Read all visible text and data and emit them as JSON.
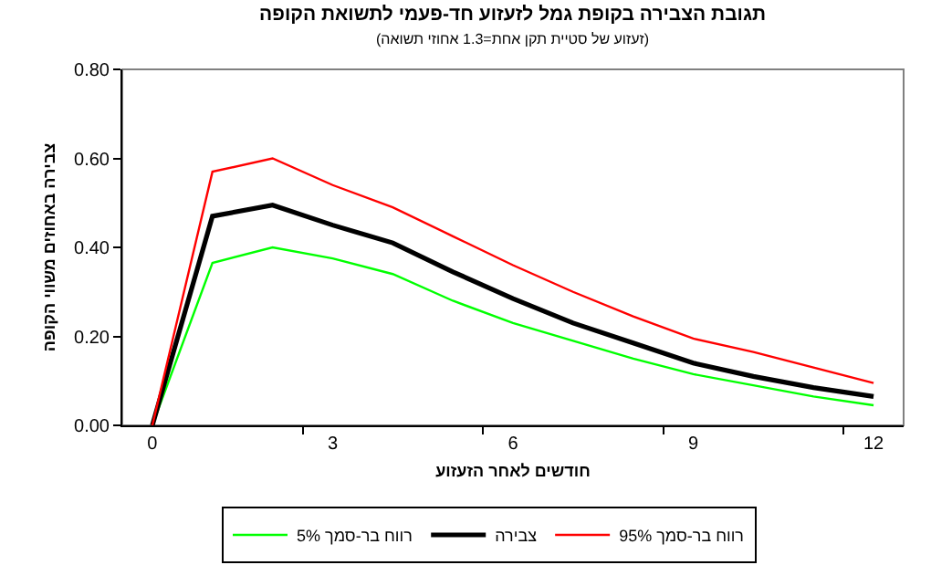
{
  "chart_data": {
    "type": "line",
    "title": "תגובת הצבירה בקופת גמל לזעזוע חד-פעמי לתשואת הקופה",
    "subtitle": "(זעזוע של סטיית תקן אחת=1.3 אחוזי תשואה)",
    "xlabel": "חודשים לאחר הזעזוע",
    "ylabel": "צבירה באחוזים משווי הקופה",
    "x": [
      0,
      1,
      2,
      3,
      4,
      5,
      6,
      7,
      8,
      9,
      10,
      11,
      12
    ],
    "xlim": [
      -0.5,
      12.5
    ],
    "xticks": [
      0,
      {
        "value": 2.5,
        "label": null
      },
      3,
      {
        "value": 5.5,
        "label": null
      },
      6,
      {
        "value": 8.5,
        "label": null
      },
      9,
      {
        "value": 11.5,
        "label": null
      },
      12
    ],
    "ylim": [
      0,
      0.8
    ],
    "yticks": [
      {
        "value": 0,
        "label": "0.00"
      },
      {
        "value": 0.2,
        "label": "0.20"
      },
      {
        "value": 0.4,
        "label": "0.40"
      },
      {
        "value": 0.6,
        "label": "0.60"
      },
      {
        "value": 0.8,
        "label": "0.80"
      }
    ],
    "series": [
      {
        "name": "רווח בר-סמך 5%",
        "color": "#00ff00",
        "values": [
          0,
          0.365,
          0.4,
          0.375,
          0.34,
          0.28,
          0.23,
          0.19,
          0.15,
          0.115,
          0.09,
          0.065,
          0.045
        ]
      },
      {
        "name": "צבירה",
        "color": "#000000",
        "values": [
          0,
          0.47,
          0.495,
          0.45,
          0.41,
          0.345,
          0.285,
          0.23,
          0.185,
          0.14,
          0.11,
          0.085,
          0.065
        ]
      },
      {
        "name": "רווח בר-סמך 95%",
        "color": "#ff0000",
        "values": [
          0,
          0.57,
          0.6,
          0.54,
          0.49,
          0.425,
          0.36,
          0.3,
          0.245,
          0.195,
          0.165,
          0.13,
          0.095
        ]
      }
    ],
    "grid": false,
    "legend": "bottom",
    "marker": "none",
    "line_style": "solid"
  }
}
